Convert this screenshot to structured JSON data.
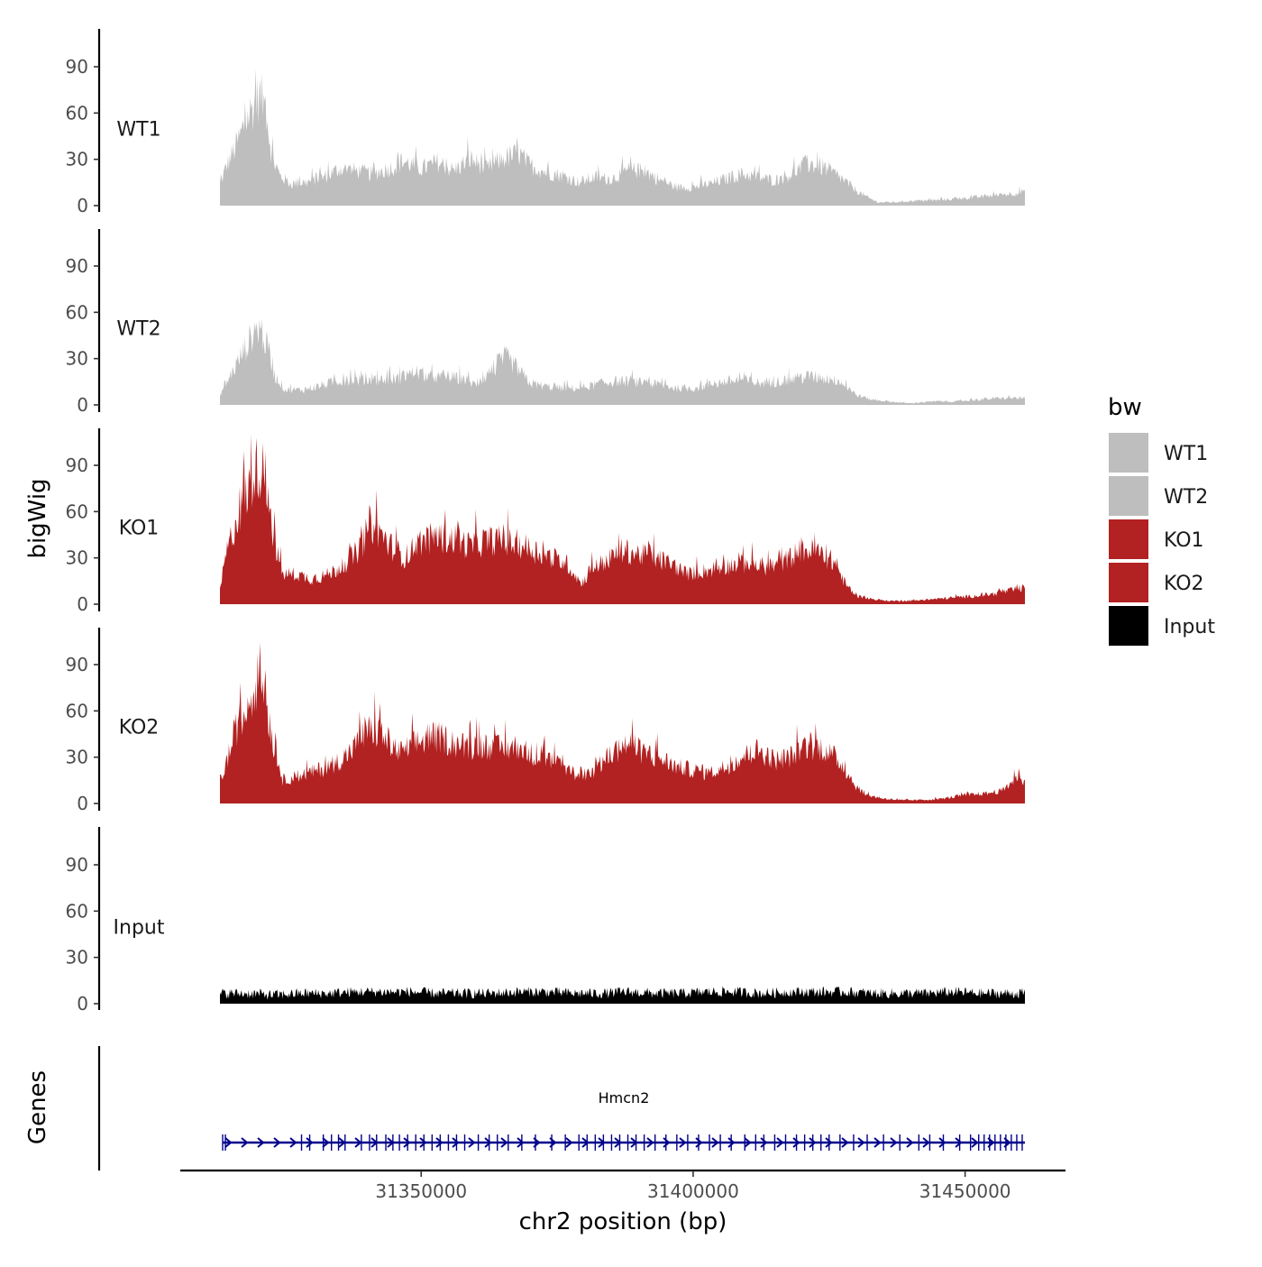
{
  "chart_data": {
    "type": "area",
    "region": {
      "chrom": "chr2",
      "start": 31313000,
      "end": 31461000
    },
    "xlabel": "chr2 position (bp)",
    "ylabel": "bigWig",
    "x_ticks": [
      31350000,
      31400000,
      31450000
    ],
    "x_tick_labels": [
      "31350000",
      "31400000",
      "31450000"
    ],
    "y_ticks": [
      0,
      30,
      60,
      90
    ],
    "y_tick_labels": [
      "0",
      "30",
      "60",
      "90"
    ],
    "ylim": [
      0,
      110
    ],
    "series": [
      {
        "name": "WT1",
        "color": "#BEBEBE",
        "profile": [
          [
            31313000,
            12
          ],
          [
            31314000,
            22
          ],
          [
            31316000,
            36
          ],
          [
            31318000,
            52
          ],
          [
            31319500,
            62
          ],
          [
            31320500,
            66
          ],
          [
            31321500,
            58
          ],
          [
            31322500,
            30
          ],
          [
            31324000,
            18
          ],
          [
            31326000,
            13
          ],
          [
            31329000,
            14
          ],
          [
            31332000,
            17
          ],
          [
            31335000,
            22
          ],
          [
            31338000,
            21
          ],
          [
            31341000,
            19
          ],
          [
            31344000,
            22
          ],
          [
            31347000,
            26
          ],
          [
            31350000,
            22
          ],
          [
            31353000,
            26
          ],
          [
            31356000,
            21
          ],
          [
            31359000,
            28
          ],
          [
            31362000,
            22
          ],
          [
            31365000,
            28
          ],
          [
            31368000,
            31
          ],
          [
            31370000,
            24
          ],
          [
            31373000,
            20
          ],
          [
            31376000,
            18
          ],
          [
            31379000,
            14
          ],
          [
            31382000,
            17
          ],
          [
            31385000,
            16
          ],
          [
            31388000,
            21
          ],
          [
            31391000,
            21
          ],
          [
            31394000,
            15
          ],
          [
            31397000,
            11
          ],
          [
            31400000,
            11
          ],
          [
            31403000,
            13
          ],
          [
            31406000,
            16
          ],
          [
            31409000,
            19
          ],
          [
            31412000,
            17
          ],
          [
            31415000,
            15
          ],
          [
            31418000,
            19
          ],
          [
            31421000,
            25
          ],
          [
            31424000,
            23
          ],
          [
            31427000,
            17
          ],
          [
            31430000,
            9
          ],
          [
            31432000,
            5
          ],
          [
            31434000,
            2
          ],
          [
            31437000,
            2
          ],
          [
            31441000,
            3
          ],
          [
            31444000,
            3
          ],
          [
            31448000,
            4
          ],
          [
            31452000,
            5
          ],
          [
            31455000,
            6
          ],
          [
            31458000,
            7
          ],
          [
            31461000,
            8
          ]
        ]
      },
      {
        "name": "WT2",
        "color": "#BEBEBE",
        "profile": [
          [
            31313000,
            6
          ],
          [
            31314000,
            12
          ],
          [
            31316000,
            24
          ],
          [
            31318000,
            36
          ],
          [
            31319500,
            45
          ],
          [
            31320500,
            46
          ],
          [
            31321500,
            36
          ],
          [
            31323000,
            18
          ],
          [
            31325000,
            9
          ],
          [
            31328000,
            9
          ],
          [
            31331000,
            11
          ],
          [
            31334000,
            14
          ],
          [
            31337000,
            15
          ],
          [
            31340000,
            15
          ],
          [
            31343000,
            15
          ],
          [
            31346000,
            16
          ],
          [
            31349000,
            20
          ],
          [
            31352000,
            16
          ],
          [
            31355000,
            17
          ],
          [
            31358000,
            15
          ],
          [
            31360000,
            12
          ],
          [
            31363000,
            20
          ],
          [
            31365500,
            29
          ],
          [
            31367000,
            24
          ],
          [
            31370000,
            13
          ],
          [
            31373000,
            11
          ],
          [
            31376000,
            10
          ],
          [
            31379000,
            10
          ],
          [
            31382000,
            12
          ],
          [
            31385000,
            14
          ],
          [
            31388000,
            14
          ],
          [
            31391000,
            13
          ],
          [
            31394000,
            12
          ],
          [
            31397000,
            10
          ],
          [
            31400000,
            10
          ],
          [
            31403000,
            12
          ],
          [
            31406000,
            14
          ],
          [
            31409000,
            15
          ],
          [
            31412000,
            13
          ],
          [
            31415000,
            14
          ],
          [
            31418000,
            15
          ],
          [
            31421000,
            17
          ],
          [
            31424000,
            16
          ],
          [
            31427000,
            14
          ],
          [
            31430000,
            6
          ],
          [
            31433000,
            3
          ],
          [
            31436000,
            2
          ],
          [
            31440000,
            1
          ],
          [
            31444000,
            2
          ],
          [
            31448000,
            2
          ],
          [
            31452000,
            3
          ],
          [
            31456000,
            4
          ],
          [
            31461000,
            4
          ]
        ]
      },
      {
        "name": "KO1",
        "color": "#B22222",
        "profile": [
          [
            31313000,
            8
          ],
          [
            31314000,
            28
          ],
          [
            31316000,
            50
          ],
          [
            31318000,
            66
          ],
          [
            31319500,
            80
          ],
          [
            31320500,
            84
          ],
          [
            31321500,
            72
          ],
          [
            31323000,
            38
          ],
          [
            31324500,
            18
          ],
          [
            31327000,
            18
          ],
          [
            31330000,
            15
          ],
          [
            31333000,
            18
          ],
          [
            31336000,
            24
          ],
          [
            31339000,
            34
          ],
          [
            31340500,
            48
          ],
          [
            31342000,
            45
          ],
          [
            31344000,
            36
          ],
          [
            31347000,
            28
          ],
          [
            31350000,
            38
          ],
          [
            31353000,
            40
          ],
          [
            31356000,
            39
          ],
          [
            31359000,
            35
          ],
          [
            31362000,
            38
          ],
          [
            31365000,
            38
          ],
          [
            31368000,
            36
          ],
          [
            31371000,
            32
          ],
          [
            31374000,
            28
          ],
          [
            31377000,
            24
          ],
          [
            31379500,
            12
          ],
          [
            31381000,
            20
          ],
          [
            31384000,
            26
          ],
          [
            31387000,
            32
          ],
          [
            31390000,
            30
          ],
          [
            31393000,
            28
          ],
          [
            31396000,
            24
          ],
          [
            31399000,
            18
          ],
          [
            31402000,
            20
          ],
          [
            31405000,
            22
          ],
          [
            31408000,
            24
          ],
          [
            31411000,
            24
          ],
          [
            31414000,
            22
          ],
          [
            31417000,
            26
          ],
          [
            31420000,
            33
          ],
          [
            31423000,
            31
          ],
          [
            31426000,
            25
          ],
          [
            31428000,
            12
          ],
          [
            31430000,
            5
          ],
          [
            31433000,
            3
          ],
          [
            31436000,
            2
          ],
          [
            31440000,
            2
          ],
          [
            31444000,
            3
          ],
          [
            31448000,
            4
          ],
          [
            31452000,
            5
          ],
          [
            31455000,
            6
          ],
          [
            31458000,
            8
          ],
          [
            31461000,
            10
          ]
        ]
      },
      {
        "name": "KO2",
        "color": "#B22222",
        "profile": [
          [
            31313000,
            14
          ],
          [
            31314000,
            22
          ],
          [
            31316000,
            45
          ],
          [
            31318000,
            55
          ],
          [
            31319500,
            72
          ],
          [
            31320500,
            78
          ],
          [
            31321500,
            62
          ],
          [
            31323000,
            32
          ],
          [
            31324500,
            14
          ],
          [
            31327000,
            16
          ],
          [
            31330000,
            19
          ],
          [
            31333000,
            22
          ],
          [
            31336000,
            28
          ],
          [
            31339000,
            38
          ],
          [
            31341000,
            45
          ],
          [
            31343000,
            40
          ],
          [
            31346000,
            30
          ],
          [
            31349000,
            36
          ],
          [
            31352000,
            40
          ],
          [
            31355000,
            38
          ],
          [
            31358000,
            34
          ],
          [
            31361000,
            35
          ],
          [
            31364000,
            33
          ],
          [
            31367000,
            34
          ],
          [
            31370000,
            30
          ],
          [
            31373000,
            27
          ],
          [
            31376000,
            22
          ],
          [
            31379000,
            16
          ],
          [
            31382000,
            20
          ],
          [
            31385000,
            30
          ],
          [
            31388000,
            36
          ],
          [
            31391000,
            30
          ],
          [
            31394000,
            27
          ],
          [
            31397000,
            22
          ],
          [
            31400000,
            20
          ],
          [
            31403000,
            18
          ],
          [
            31406000,
            22
          ],
          [
            31409000,
            28
          ],
          [
            31412000,
            32
          ],
          [
            31415000,
            26
          ],
          [
            31418000,
            28
          ],
          [
            31421000,
            35
          ],
          [
            31424000,
            33
          ],
          [
            31427000,
            25
          ],
          [
            31430000,
            10
          ],
          [
            31432000,
            5
          ],
          [
            31435000,
            3
          ],
          [
            31438000,
            2
          ],
          [
            31442000,
            2
          ],
          [
            31446000,
            3
          ],
          [
            31450000,
            5
          ],
          [
            31454000,
            6
          ],
          [
            31457000,
            8
          ],
          [
            31459000,
            14
          ],
          [
            31460000,
            18
          ],
          [
            31461000,
            12
          ]
        ]
      },
      {
        "name": "Input",
        "color": "#000000",
        "profile": [
          [
            31313000,
            6
          ],
          [
            31318000,
            6
          ],
          [
            31323000,
            5
          ],
          [
            31328000,
            6
          ],
          [
            31333000,
            6
          ],
          [
            31338000,
            7
          ],
          [
            31343000,
            7
          ],
          [
            31348000,
            7
          ],
          [
            31353000,
            6
          ],
          [
            31358000,
            6
          ],
          [
            31363000,
            6
          ],
          [
            31368000,
            7
          ],
          [
            31373000,
            7
          ],
          [
            31378000,
            6
          ],
          [
            31383000,
            6
          ],
          [
            31388000,
            7
          ],
          [
            31393000,
            6
          ],
          [
            31398000,
            6
          ],
          [
            31403000,
            7
          ],
          [
            31408000,
            7
          ],
          [
            31413000,
            6
          ],
          [
            31418000,
            7
          ],
          [
            31423000,
            7
          ],
          [
            31428000,
            7
          ],
          [
            31433000,
            6
          ],
          [
            31438000,
            6
          ],
          [
            31443000,
            6
          ],
          [
            31448000,
            7
          ],
          [
            31453000,
            6
          ],
          [
            31458000,
            6
          ],
          [
            31461000,
            6
          ]
        ]
      }
    ],
    "legend": {
      "title": "bw",
      "position": "right",
      "entries": [
        {
          "label": "WT1",
          "color": "#BEBEBE"
        },
        {
          "label": "WT2",
          "color": "#BEBEBE"
        },
        {
          "label": "KO1",
          "color": "#B22222"
        },
        {
          "label": "KO2",
          "color": "#B22222"
        },
        {
          "label": "Input",
          "color": "#000000"
        }
      ]
    },
    "genes_track": {
      "label": "Genes",
      "gene": {
        "name": "Hmcn2",
        "start": 31313500,
        "end": 31461000,
        "strand": "+",
        "color": "#00008B",
        "exons": [
          31313500,
          31314000,
          31328000,
          31329500,
          31332000,
          31333500,
          31334800,
          31336000,
          31339000,
          31340500,
          31341800,
          31343500,
          31344800,
          31346000,
          31347500,
          31349000,
          31350500,
          31352000,
          31353500,
          31355000,
          31356500,
          31358000,
          31360500,
          31362500,
          31364000,
          31366000,
          31368500,
          31371000,
          31374000,
          31376500,
          31379000,
          31380500,
          31382000,
          31383500,
          31385000,
          31386500,
          31388000,
          31389500,
          31391000,
          31393000,
          31395000,
          31397000,
          31399000,
          31401000,
          31403000,
          31405000,
          31407000,
          31409500,
          31411500,
          31413000,
          31415000,
          31417000,
          31419000,
          31420500,
          31422000,
          31423500,
          31425000,
          31427000,
          31429500,
          31432000,
          31435000,
          31438000,
          31441500,
          31443500,
          31446000,
          31449000,
          31451000,
          31452500,
          31453500,
          31454500,
          31455500,
          31456500,
          31457500,
          31458500,
          31459500,
          31460500
        ]
      }
    }
  }
}
